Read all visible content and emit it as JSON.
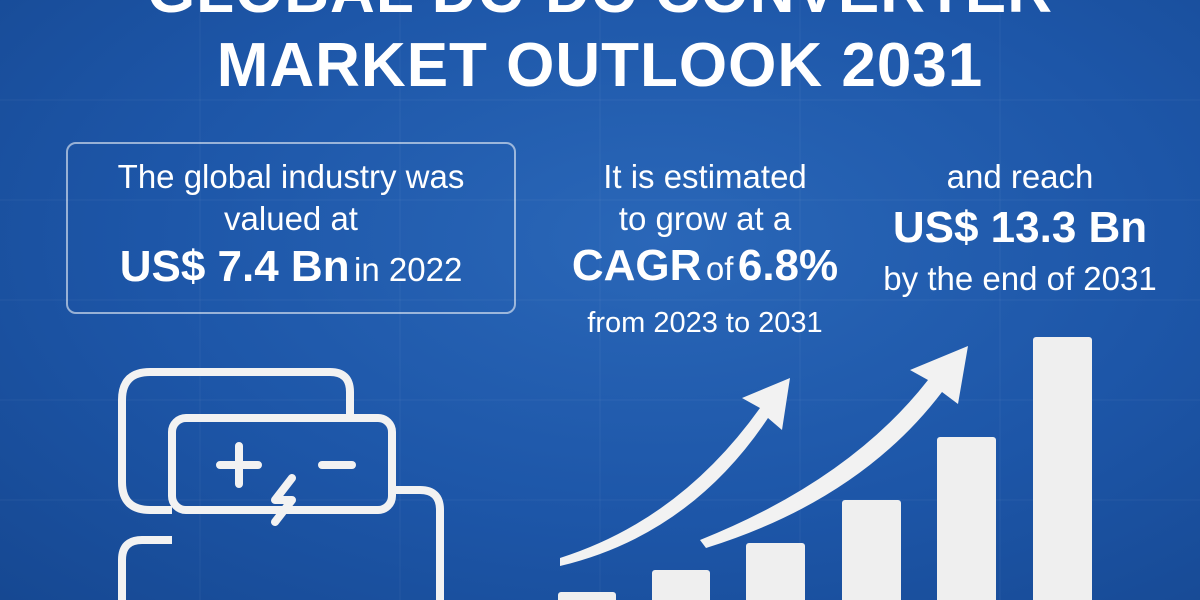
{
  "header": {
    "title_lines": [
      "GLOBAL DC-DC CONVERTER",
      "MARKET OUTLOOK 2031"
    ]
  },
  "panels": [
    {
      "lines": [
        "The global industry was",
        "valued at"
      ],
      "figure": "US$ 7.4 Bn",
      "figure_suffix": "in 2022"
    },
    {
      "lines": [
        "It is estimated",
        "to grow at a"
      ],
      "cagr_label": "CAGR",
      "cagr_of": "of",
      "cagr_value": "6.8%",
      "period": "from 2023 to 2031"
    },
    {
      "lines": [
        "and reach"
      ],
      "figure": "US$ 13.3 Bn",
      "figure_suffix": "by the end of 2031"
    }
  ]
}
